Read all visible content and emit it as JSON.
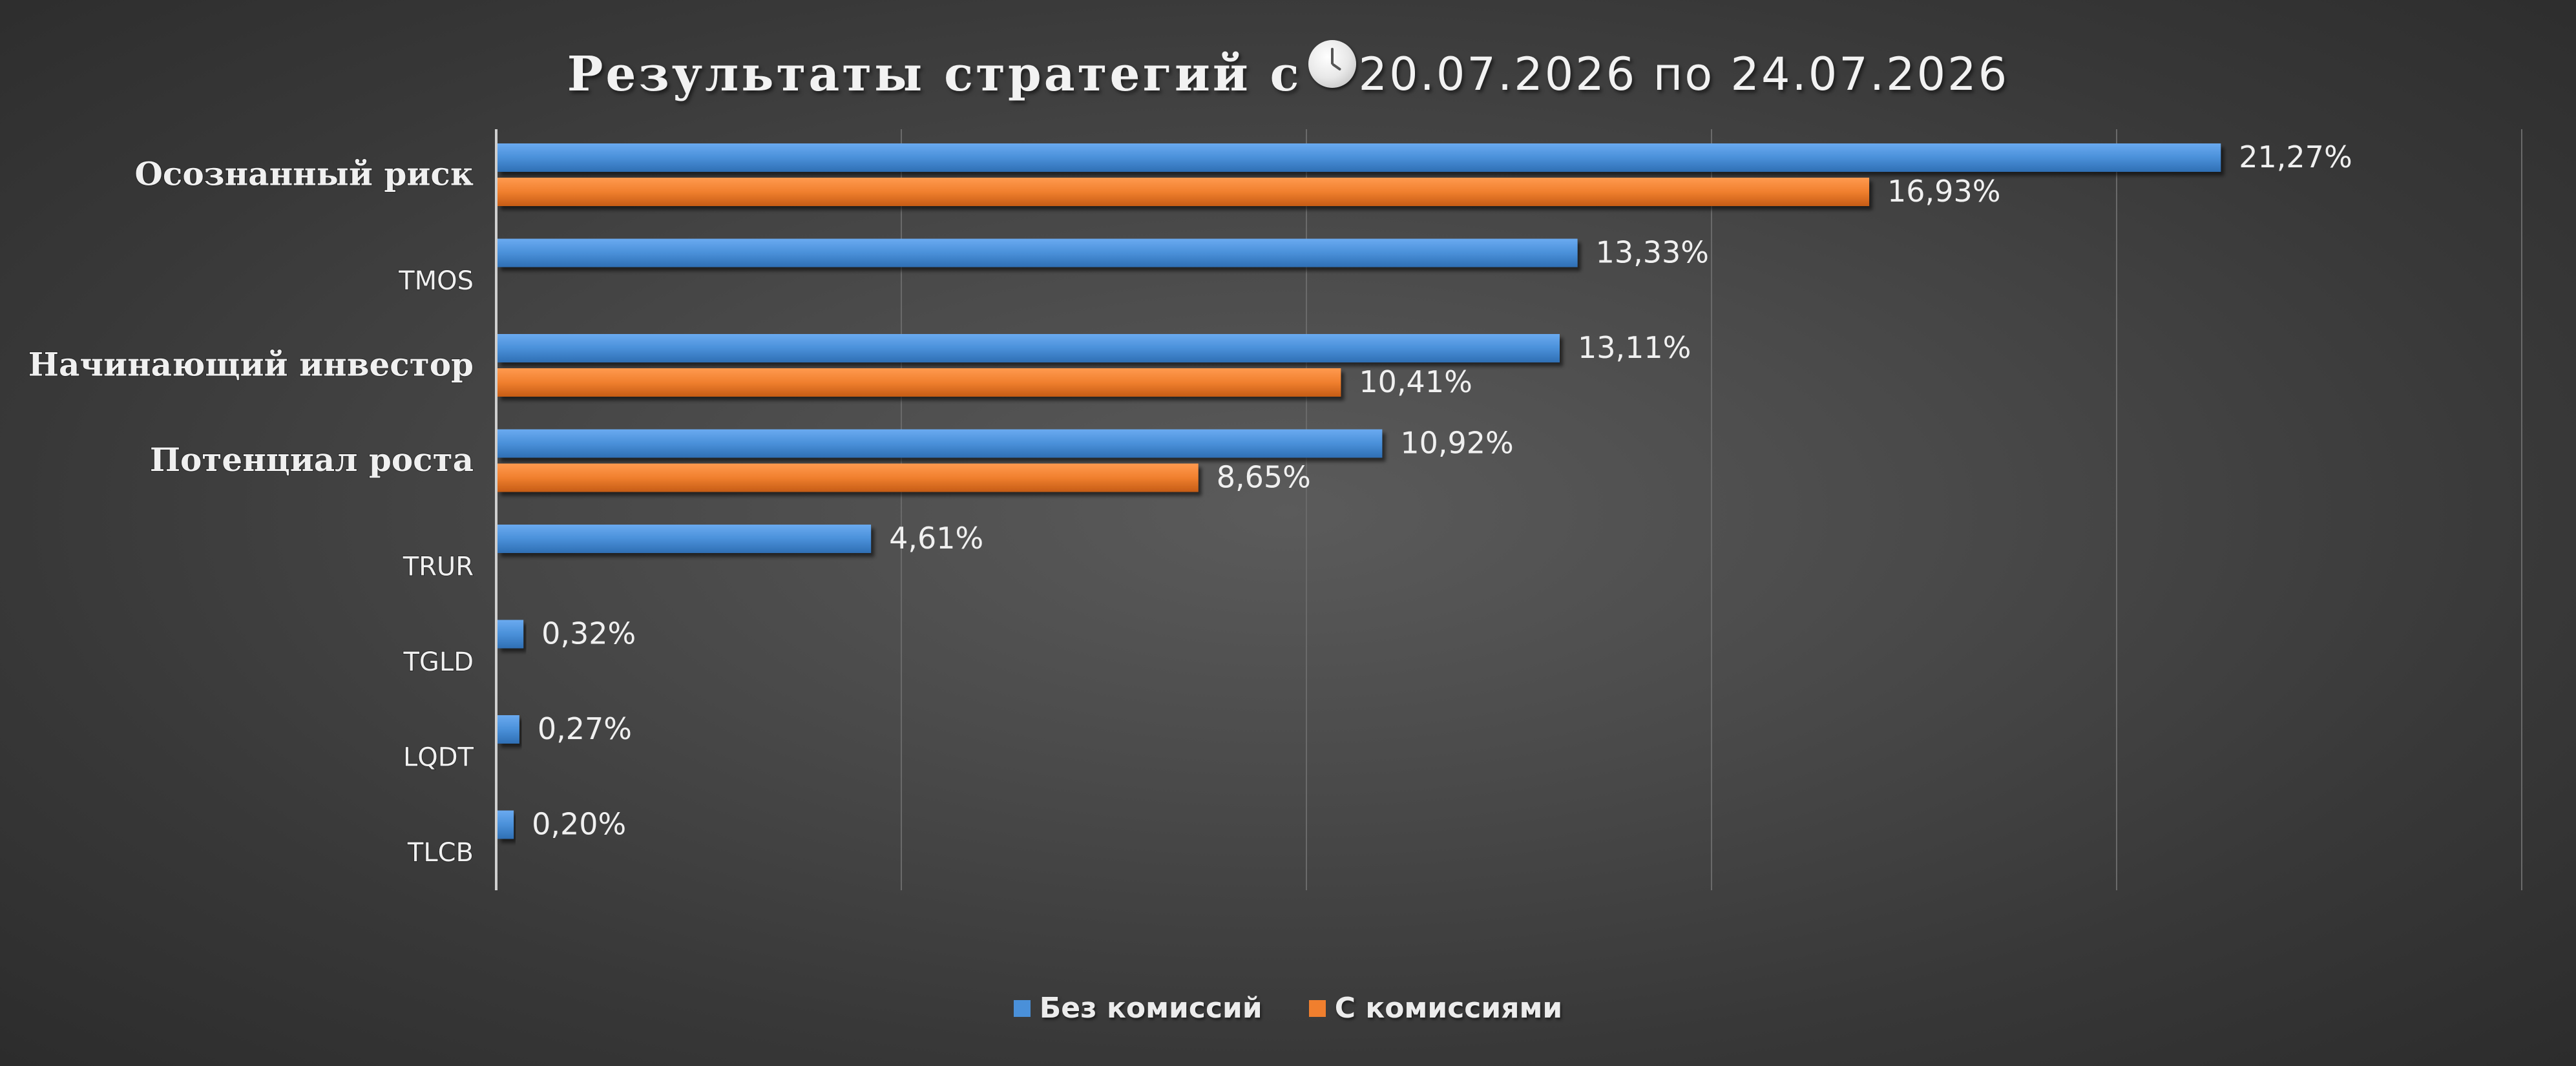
{
  "title": {
    "text_before": "Результаты стратегий с",
    "icon": "clock-icon",
    "date_range": "20.07.2026 по 24.07.2026"
  },
  "colors": {
    "series_no_fee": "#4a90d9",
    "series_with_fee": "#f07f2e",
    "gridline": "#6a6a6a",
    "axis": "#cfcfcf",
    "text": "#f0f0f0"
  },
  "chart_data": {
    "type": "bar",
    "orientation": "horizontal",
    "categories": [
      "Осознанный риск",
      "TMOS",
      "Начинающий инвестор",
      "Потенциал роста",
      "TRUR",
      "TGLD",
      "LQDT",
      "TLCB"
    ],
    "series": [
      {
        "name": "Без комиссий",
        "values": [
          21.27,
          13.33,
          13.11,
          10.92,
          4.61,
          0.32,
          0.27,
          0.2
        ],
        "labels": [
          "21,27%",
          "13,33%",
          "13,11%",
          "10,92%",
          "4,61%",
          "0,32%",
          "0,27%",
          "0,20%"
        ]
      },
      {
        "name": "С комиссиями",
        "values": [
          16.93,
          null,
          10.41,
          8.65,
          null,
          null,
          null,
          null
        ],
        "labels": [
          "16,93%",
          null,
          "10,41%",
          "8,65%",
          null,
          null,
          null,
          null
        ]
      }
    ],
    "xlim": [
      0,
      25
    ],
    "grid": true,
    "legend": "bottom-center",
    "category_label_styles": [
      "serif-bold",
      "sans",
      "serif-bold",
      "serif-bold",
      "sans",
      "sans",
      "sans",
      "sans"
    ]
  }
}
